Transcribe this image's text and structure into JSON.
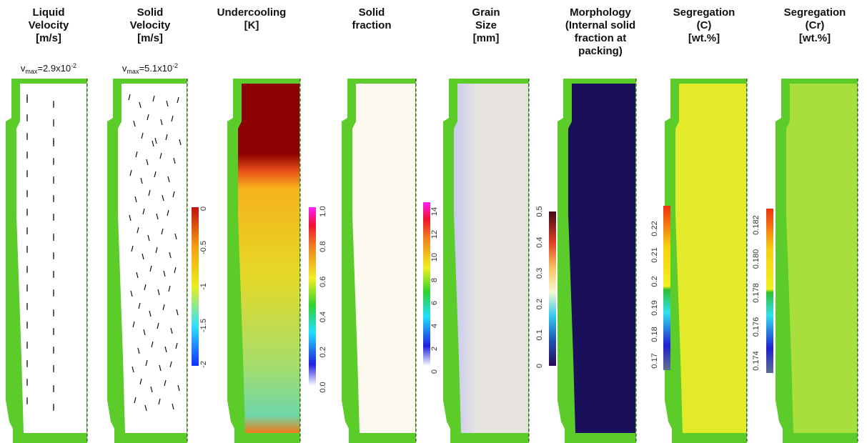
{
  "panels": [
    {
      "title": [
        "Liquid",
        "Velocity",
        "[m/s]"
      ],
      "vmax": {
        "v": "v",
        "sub": "max",
        "text": "=2.9x10",
        "sup": "-2"
      }
    },
    {
      "title": [
        "Solid",
        "Velocity",
        "[m/s]"
      ],
      "vmax": {
        "v": "v",
        "sub": "max",
        "text": "=5.1x10",
        "sup": "-2"
      }
    },
    {
      "title": [
        "Undercooling",
        "[K]"
      ],
      "ticks": [
        "0",
        "-0.5",
        "-1",
        "-1.5",
        "-2"
      ]
    },
    {
      "title": [
        "Solid",
        "fraction"
      ],
      "ticks": [
        "1.0",
        "0.8",
        "0.6",
        "0.4",
        "0.2",
        "0.0"
      ]
    },
    {
      "title": [
        "Grain",
        "Size",
        "[mm]"
      ],
      "ticks": [
        "14",
        "12",
        "10",
        "8",
        "6",
        "4",
        "2",
        "0"
      ]
    },
    {
      "title": [
        "Morphology",
        "(Internal solid",
        "fraction at",
        "packing)"
      ],
      "ticks": [
        "0.5",
        "0.4",
        "0.3",
        "0.2",
        "0.1",
        "0"
      ]
    },
    {
      "title": [
        "Segregation",
        "(C)",
        "[wt.%]"
      ],
      "ticks": [
        "0.22",
        "0.21",
        "0.2",
        "0.19",
        "0.18",
        "0.17"
      ]
    },
    {
      "title": [
        "Segregation",
        "(Cr)",
        "[wt.%]"
      ],
      "ticks": [
        "0.182",
        "0.180",
        "0.178",
        "0.176",
        "0.174"
      ]
    }
  ]
}
